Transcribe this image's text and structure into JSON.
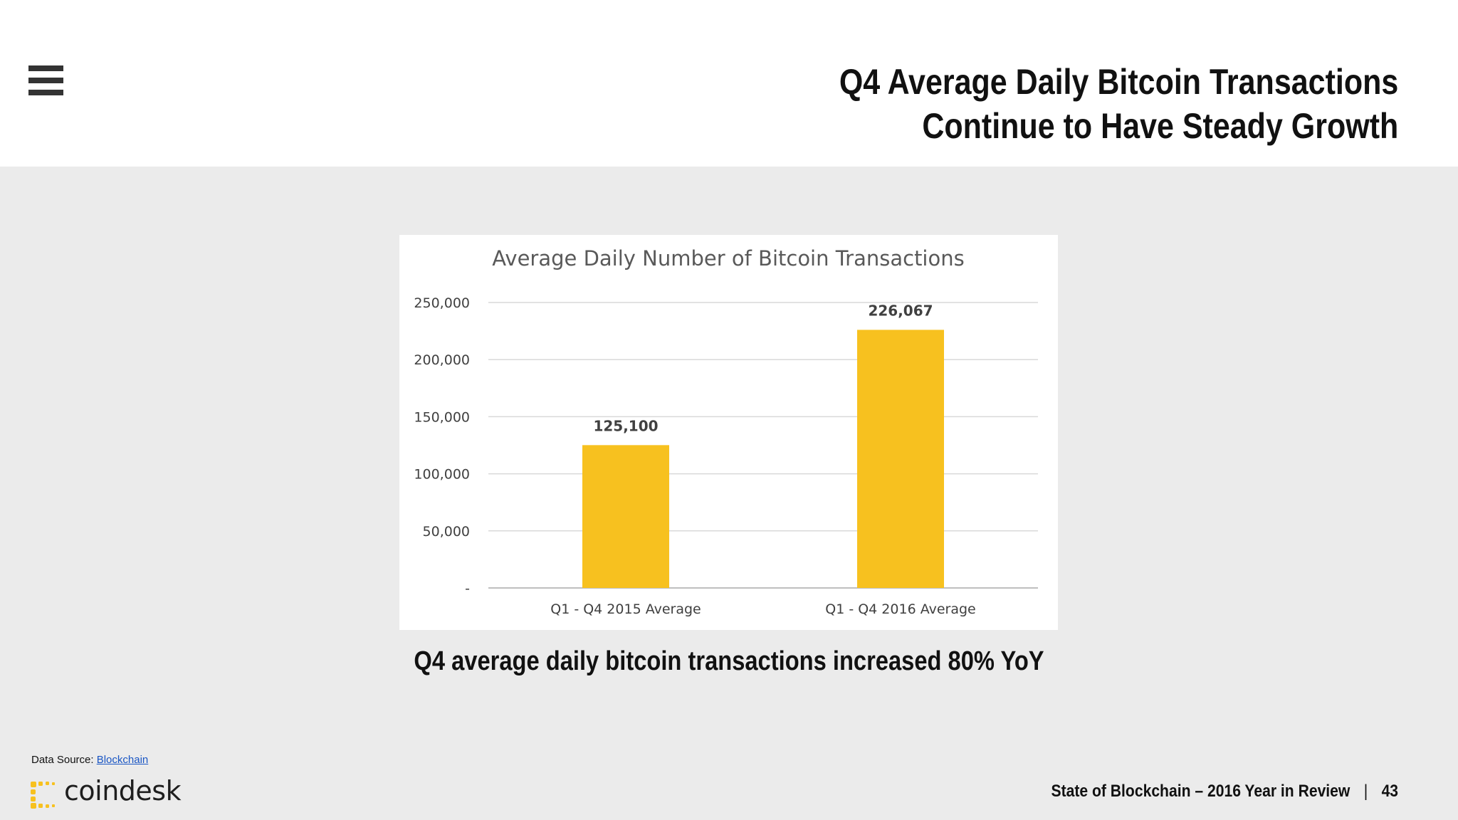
{
  "slide": {
    "title_line1": "Q4 Average Daily Bitcoin Transactions",
    "title_line2": "Continue to Have Steady Growth",
    "caption": "Q4 average daily bitcoin transactions increased 80% YoY",
    "source_label": "Data Source:",
    "source_link": "Blockchain",
    "logo_text": "coindesk",
    "footer_text": "State of Blockchain – 2016 Year in Review",
    "footer_separator": "|",
    "page_number": "43"
  },
  "icons": {
    "menu": "hamburger-menu-icon",
    "logo": "coindesk-logo-icon"
  },
  "colors": {
    "header_bg": "#ffffff",
    "page_bg": "#ebebeb",
    "bar": "#f7c11f",
    "link": "#1a56c4"
  },
  "chart_data": {
    "type": "bar",
    "title": "Average Daily Number of Bitcoin Transactions",
    "categories": [
      "Q1 - Q4 2015 Average",
      "Q1 - Q4 2016 Average"
    ],
    "values": [
      125100,
      226067
    ],
    "data_labels": [
      "125,100",
      "226,067"
    ],
    "ylim": [
      0,
      250000
    ],
    "yticks": [
      0,
      50000,
      100000,
      150000,
      200000,
      250000
    ],
    "ytick_labels": [
      "-",
      "50,000",
      "100,000",
      "150,000",
      "200,000",
      "250,000"
    ],
    "xlabel": "",
    "ylabel": "",
    "grid": true,
    "legend": "none"
  }
}
